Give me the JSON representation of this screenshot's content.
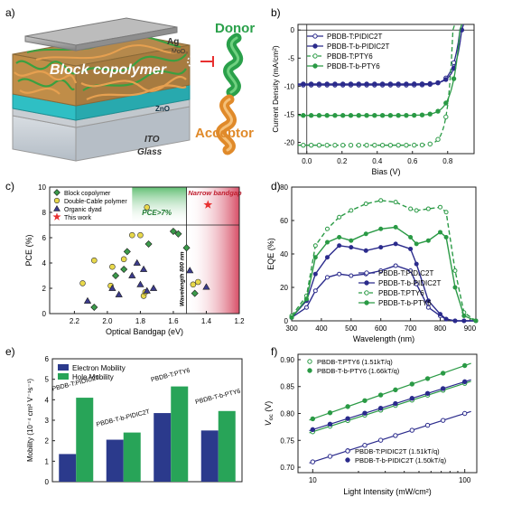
{
  "panel_labels": [
    "a)",
    "b)",
    "c)",
    "d)",
    "e)",
    "f)"
  ],
  "panel_a": {
    "layers": [
      "Ag",
      "MoO₃",
      "ZnO",
      "ITO",
      "Glass"
    ],
    "block_label": "Block copolymer",
    "donor_label": "Donor",
    "acceptor_label": "Acceptor",
    "colors": {
      "donor": "#2aa04a",
      "acceptor": "#e08a2a",
      "zno": "#2fbfc4",
      "ag": "#9a9a9a"
    }
  },
  "chart_data": [
    {
      "id": "b",
      "type": "line",
      "xlabel": "Bias (V)",
      "ylabel": "Current Density (mA/cm²)",
      "xlim": [
        -0.05,
        0.95
      ],
      "ylim": [
        -22,
        1
      ],
      "xticks": [
        0.0,
        0.2,
        0.4,
        0.6,
        0.8
      ],
      "yticks": [
        0,
        -5,
        -10,
        -15,
        -20
      ],
      "legend_position": "top-right",
      "series": [
        {
          "name": "PBDB-T:PIDIC2T",
          "color": "#2b2b8c",
          "marker": "open",
          "linestyle": "solid",
          "jsc": -9.8,
          "voc": 0.87,
          "n": 1.5
        },
        {
          "name": "PBDB-T-b-PIDIC2T",
          "color": "#2b2b8c",
          "marker": "filled",
          "linestyle": "solid",
          "jsc": -9.6,
          "voc": 0.88,
          "n": 1.4
        },
        {
          "name": "PBDB-T:PTY6",
          "color": "#2a9a45",
          "marker": "open",
          "linestyle": "dashed",
          "jsc": -20.5,
          "voc": 0.83,
          "n": 1.1
        },
        {
          "name": "PBDB-T-b-PTY6",
          "color": "#2a9a45",
          "marker": "filled",
          "linestyle": "solid",
          "jsc": -15.2,
          "voc": 0.87,
          "n": 1.6
        }
      ]
    },
    {
      "id": "c",
      "type": "scatter",
      "xlabel": "Optical Bandgap (eV)",
      "ylabel": "PCE (%)",
      "xlim": [
        2.35,
        1.2
      ],
      "ylim": [
        0,
        10
      ],
      "xticks": [
        2.2,
        2.0,
        1.8,
        1.6,
        1.4,
        1.2
      ],
      "yticks": [
        0,
        2,
        4,
        6,
        8,
        10
      ],
      "annotations": {
        "pce": "PCE>7%",
        "narrow": "Narrow bandgap",
        "wavelength": "Wavelength 800 nm"
      },
      "legend_position": "top-left",
      "series": [
        {
          "name": "Block copolymer",
          "marker": "diamond",
          "color": "#3b9a4a",
          "points": [
            [
              2.08,
              0.5
            ],
            [
              1.95,
              3.0
            ],
            [
              1.9,
              3.5
            ],
            [
              1.88,
              4.9
            ],
            [
              1.75,
              5.5
            ],
            [
              1.6,
              6.5
            ],
            [
              1.57,
              6.3
            ],
            [
              1.52,
              5.2
            ],
            [
              1.47,
              1.6
            ]
          ]
        },
        {
          "name": "Double-Cable polymer",
          "marker": "circle",
          "color": "#e8d84a",
          "points": [
            [
              2.15,
              2.4
            ],
            [
              2.08,
              4.2
            ],
            [
              1.98,
              2.2
            ],
            [
              1.97,
              3.7
            ],
            [
              1.9,
              4.3
            ],
            [
              1.85,
              6.2
            ],
            [
              1.8,
              6.2
            ],
            [
              1.78,
              1.4
            ],
            [
              1.77,
              1.7
            ],
            [
              1.76,
              8.4
            ],
            [
              1.48,
              2.3
            ],
            [
              1.45,
              2.5
            ]
          ]
        },
        {
          "name": "Organic dyad",
          "marker": "triangle",
          "color": "#3b3b8c",
          "points": [
            [
              2.12,
              1.0
            ],
            [
              1.97,
              2.0
            ],
            [
              1.93,
              1.5
            ],
            [
              1.85,
              3.0
            ],
            [
              1.82,
              4.0
            ],
            [
              1.8,
              2.3
            ],
            [
              1.78,
              3.5
            ],
            [
              1.76,
              1.8
            ],
            [
              1.72,
              2.0
            ],
            [
              1.5,
              3.4
            ],
            [
              1.4,
              2.1
            ]
          ]
        },
        {
          "name": "This work",
          "marker": "star",
          "color": "#e83030",
          "points": [
            [
              1.39,
              8.6
            ]
          ]
        }
      ]
    },
    {
      "id": "d",
      "type": "line",
      "xlabel": "Wavelength (nm)",
      "ylabel": "EQE (%)",
      "xlim": [
        300,
        920
      ],
      "ylim": [
        0,
        80
      ],
      "xticks": [
        300,
        400,
        500,
        600,
        700,
        800,
        900
      ],
      "yticks": [
        0,
        20,
        40,
        60,
        80
      ],
      "legend_position": "bottom-right",
      "x": [
        300,
        350,
        380,
        420,
        460,
        500,
        550,
        600,
        650,
        700,
        720,
        760,
        800,
        820,
        850,
        880,
        920
      ],
      "series": [
        {
          "name": "PBDB-T:PIDIC2T",
          "color": "#2b2b8c",
          "marker": "open",
          "linestyle": "solid",
          "values": [
            2,
            8,
            18,
            26,
            28,
            27,
            28,
            30,
            33,
            30,
            22,
            8,
            3,
            1,
            0,
            0,
            0
          ]
        },
        {
          "name": "PBDB-T-b-PIDIC2T",
          "color": "#2b2b8c",
          "marker": "filled",
          "linestyle": "solid",
          "values": [
            2,
            12,
            28,
            38,
            45,
            44,
            42,
            44,
            46,
            43,
            34,
            12,
            4,
            1,
            0,
            0,
            0
          ]
        },
        {
          "name": "PBDB-T:PTY6",
          "color": "#2a9a45",
          "marker": "open",
          "linestyle": "dashed",
          "values": [
            3,
            15,
            45,
            55,
            62,
            66,
            70,
            72,
            71,
            67,
            66,
            67,
            68,
            65,
            30,
            5,
            0
          ]
        },
        {
          "name": "PBDB-T-b-PTY6",
          "color": "#2a9a45",
          "marker": "filled",
          "linestyle": "solid",
          "values": [
            2,
            13,
            38,
            47,
            50,
            48,
            52,
            55,
            56,
            50,
            46,
            48,
            53,
            50,
            20,
            3,
            0
          ]
        }
      ]
    },
    {
      "id": "e",
      "type": "bar",
      "ylabel": "Mobility (10⁻⁴ cm² V⁻¹s⁻¹)",
      "ylim": [
        0,
        6
      ],
      "yticks": [
        0,
        1,
        2,
        3,
        4,
        5,
        6
      ],
      "legend_position": "top-left",
      "categories": [
        "PBDB-T:PIDIC2T",
        "PBDB-T-b-PIDIC2T",
        "PBDB-T:PTY6",
        "PBDB-T-b-PTY6"
      ],
      "series": [
        {
          "name": "Electron Mobility",
          "color": "#2b3a8c",
          "values": [
            1.35,
            2.05,
            3.35,
            2.5
          ]
        },
        {
          "name": "Hole Mobility",
          "color": "#28a458",
          "values": [
            4.1,
            2.4,
            4.65,
            3.45
          ]
        }
      ]
    },
    {
      "id": "f",
      "type": "scatter",
      "xlabel": "Light Intensity (mW/cm²)",
      "ylabel": "V",
      "ylabel_sub": "oc",
      "ylabel_unit": "(V)",
      "xscale": "log",
      "xlim": [
        8,
        120
      ],
      "ylim": [
        0.69,
        0.91
      ],
      "xticks": [
        10,
        100
      ],
      "yticks": [
        0.7,
        0.75,
        0.8,
        0.85,
        0.9
      ],
      "series": [
        {
          "name": "PBDB-T:PTY6 (1.51kT/q)",
          "color": "#2a9a45",
          "marker": "open",
          "slope": 0.09,
          "intercept": 0.766,
          "legend_group": "top"
        },
        {
          "name": "PBDB-T-b-PTY6 (1.66kT/q)",
          "color": "#2a9a45",
          "marker": "filled",
          "slope": 0.099,
          "intercept": 0.79,
          "legend_group": "top"
        },
        {
          "name": "PBDB-T:PIDIC2T (1.51kT/q)",
          "color": "#2b2b8c",
          "marker": "open",
          "slope": 0.09,
          "intercept": 0.71,
          "legend_group": "bottom"
        },
        {
          "name": "PBDB-T-b-PIDIC2T (1.50kT/q)",
          "color": "#2b2b8c",
          "marker": "filled",
          "slope": 0.089,
          "intercept": 0.77,
          "legend_group": "bottom"
        }
      ],
      "x_points": [
        10,
        13,
        17,
        22,
        28,
        35,
        45,
        57,
        72,
        100
      ]
    }
  ]
}
